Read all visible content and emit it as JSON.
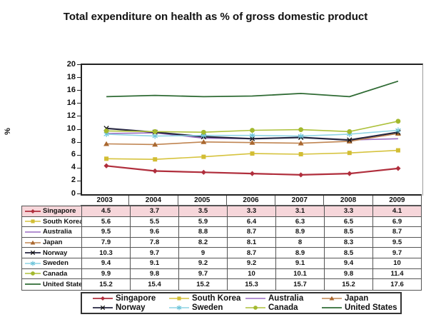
{
  "title": {
    "text": "Total expenditure on health as % of gross domestic product"
  },
  "y_axis": {
    "label": "%",
    "ticks": [
      20,
      18,
      16,
      14,
      12,
      10,
      8,
      6,
      4,
      2,
      0
    ],
    "min": 0,
    "max": 20
  },
  "years": [
    "2003",
    "2004",
    "2005",
    "2006",
    "2007",
    "2008",
    "2009"
  ],
  "colors": {
    "background": "#ffffff",
    "axis": "#222222",
    "table_border": "#555555",
    "highlight_row": "#f6d6da",
    "text": "#111111"
  },
  "chart_data": {
    "type": "line",
    "title": "Total expenditure on health as % of gross domestic product",
    "xlabel": "",
    "ylabel": "%",
    "ylim": [
      0,
      20
    ],
    "grid": false,
    "legend_position": "bottom",
    "categories": [
      "2003",
      "2004",
      "2005",
      "2006",
      "2007",
      "2008",
      "2009"
    ],
    "series": [
      {
        "name": "Singapore",
        "values": [
          4.5,
          3.7,
          3.5,
          3.3,
          3.1,
          3.3,
          4.1
        ],
        "color": "#b02e3c",
        "marker": "diamond",
        "marker_color": "#b02e3c",
        "line_width": 2.2,
        "highlight": true
      },
      {
        "name": "South Korea",
        "values": [
          5.6,
          5.5,
          5.9,
          6.4,
          6.3,
          6.5,
          6.9
        ],
        "color": "#d6c33e",
        "marker": "square",
        "marker_color": "#d2bd33",
        "line_width": 1.6,
        "highlight": false
      },
      {
        "name": "Australia",
        "values": [
          9.5,
          9.6,
          8.8,
          8.7,
          8.9,
          8.5,
          8.7
        ],
        "color": "#9a6bc4",
        "marker": "none",
        "marker_color": "#9a6bc4",
        "line_width": 1.6,
        "highlight": false
      },
      {
        "name": "Japan",
        "values": [
          7.9,
          7.8,
          8.2,
          8.1,
          8,
          8.3,
          9.5
        ],
        "color": "#c08552",
        "marker": "triangle",
        "marker_color": "#a9672f",
        "line_width": 1.6,
        "highlight": false
      },
      {
        "name": "Norway",
        "values": [
          10.3,
          9.7,
          9,
          8.7,
          8.9,
          8.5,
          9.7
        ],
        "color": "#262640",
        "marker": "x",
        "marker_color": "#111111",
        "line_width": 2.2,
        "highlight": false
      },
      {
        "name": "Sweden",
        "values": [
          9.4,
          9.1,
          9.2,
          9.2,
          9.1,
          9.4,
          10
        ],
        "color": "#8ed4e4",
        "marker": "star",
        "marker_color": "#6cc4da",
        "line_width": 1.6,
        "highlight": false
      },
      {
        "name": "Canada",
        "values": [
          9.9,
          9.8,
          9.7,
          10,
          10.1,
          9.8,
          11.4
        ],
        "color": "#adc13b",
        "marker": "circle",
        "marker_color": "#a3b92e",
        "line_width": 1.6,
        "highlight": false
      },
      {
        "name": "United States",
        "values": [
          15.2,
          15.4,
          15.2,
          15.3,
          15.7,
          15.2,
          17.6
        ],
        "color": "#2f6b34",
        "marker": "none",
        "marker_color": "#2f6b34",
        "line_width": 1.8,
        "highlight": false
      }
    ]
  }
}
